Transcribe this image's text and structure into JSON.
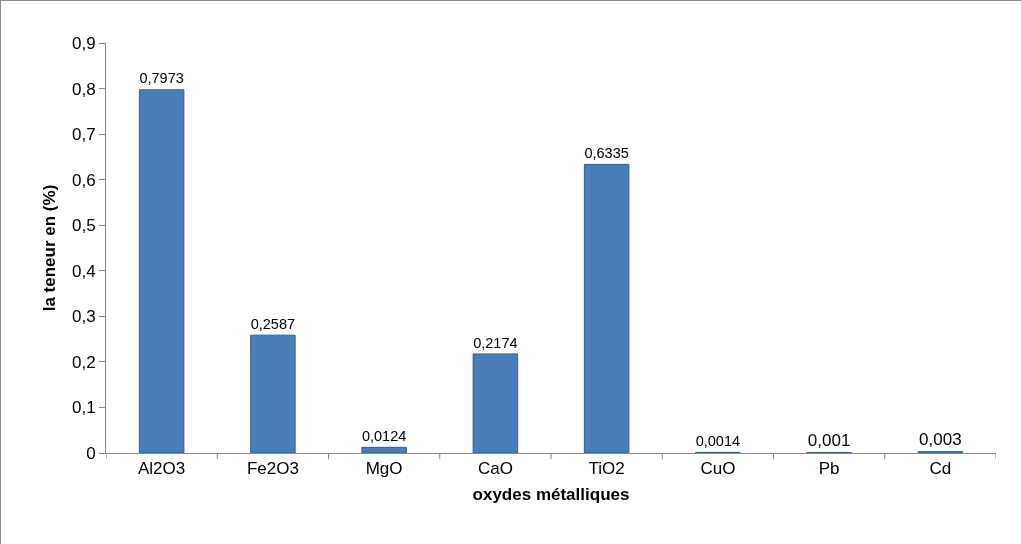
{
  "chart_data": {
    "type": "bar",
    "xlabel": "oxydes métalliques",
    "ylabel": "la teneur en (%)",
    "categories": [
      "Al2O3",
      "Fe2O3",
      "MgO",
      "CaO",
      "TiO2",
      "CuO",
      "Pb",
      "Cd"
    ],
    "values": [
      0.7973,
      0.2587,
      0.0124,
      0.2174,
      0.6335,
      0.0014,
      0.001,
      0.003
    ],
    "value_labels": [
      "0,7973",
      "0,2587",
      "0,0124",
      "0,2174",
      "0,6335",
      "0,0014",
      "0,001",
      "0,003"
    ],
    "color": "#4a7ebb",
    "ylim": [
      0,
      0.9
    ],
    "yticks": [
      0,
      {
        "value": 0.1,
        "label": "0,1"
      },
      {
        "value": 0.2,
        "label": "0,2"
      },
      {
        "value": 0.3,
        "label": "0,3"
      },
      {
        "value": 0.4,
        "label": "0,4"
      },
      {
        "value": 0.5,
        "label": "0,5"
      },
      {
        "value": 0.6,
        "label": "0,6"
      },
      {
        "value": 0.7,
        "label": "0,7"
      },
      {
        "value": 0.8,
        "label": "0,8"
      },
      {
        "value": 0.9,
        "label": "0,9"
      }
    ],
    "grid": false,
    "legend": false
  }
}
